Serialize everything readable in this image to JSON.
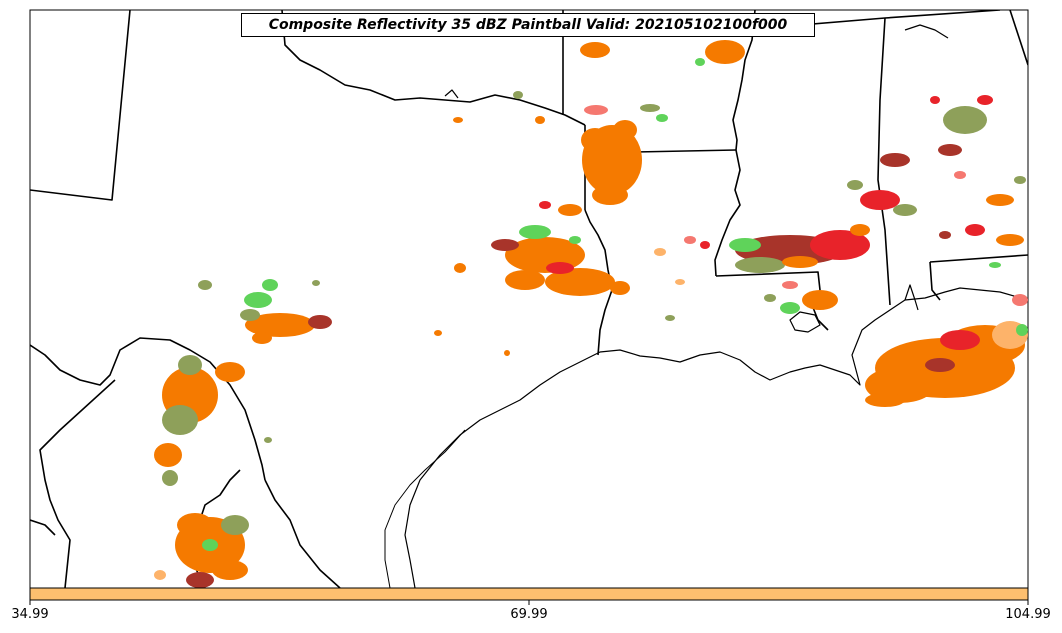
{
  "title": "Composite Reflectivity 35 dBZ Paintball Valid: 202105102100f000",
  "colorbar": {
    "color": "#fdbf6f",
    "ticks": [
      "34.99",
      "69.99",
      "104.99"
    ]
  },
  "colors": {
    "orange": "#f57a00",
    "green": "#5fd35a",
    "olive": "#8ea05a",
    "red": "#e8232a",
    "salmon": "#f57870",
    "dark_red": "#a8342a",
    "light_orange": "#fdb36a",
    "border": "#000000"
  }
}
